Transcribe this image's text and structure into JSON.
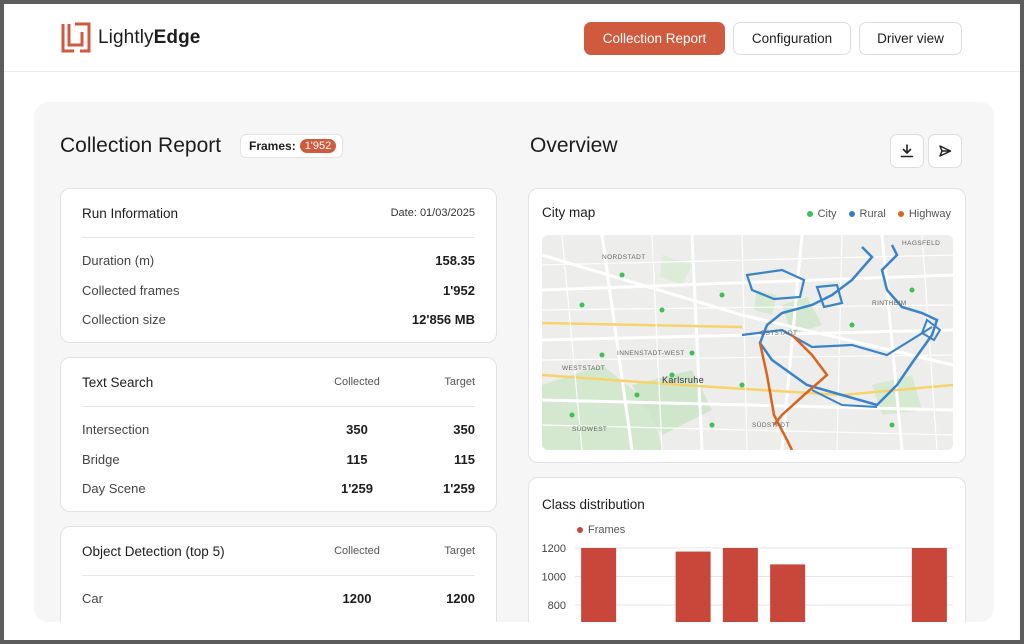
{
  "brand": {
    "name_light": "Lightly",
    "name_bold": "Edge",
    "color": "#cf5a3e"
  },
  "nav": {
    "collection_report": "Collection Report",
    "configuration": "Configuration",
    "driver_view": "Driver view",
    "active": "collection_report"
  },
  "page": {
    "title": "Collection Report",
    "frames_label": "Frames:",
    "frames_value": "1'952",
    "overview_title": "Overview",
    "download_icon": "download-icon",
    "send_icon": "send-icon"
  },
  "run_info": {
    "title": "Run Information",
    "date": "Date: 01/03/2025",
    "rows": [
      {
        "label": "Duration (m)",
        "value": "158.35"
      },
      {
        "label": "Collected frames",
        "value": "1'952"
      },
      {
        "label": "Collection size",
        "value": "12'856 MB"
      }
    ]
  },
  "text_search": {
    "title": "Text Search",
    "col_collected": "Collected",
    "col_target": "Target",
    "rows": [
      {
        "label": "Intersection",
        "collected": "350",
        "target": "350"
      },
      {
        "label": "Bridge",
        "collected": "115",
        "target": "115"
      },
      {
        "label": "Day Scene",
        "collected": "1'259",
        "target": "1'259"
      }
    ]
  },
  "object_detection": {
    "title": "Object Detection (top 5)",
    "col_collected": "Collected",
    "col_target": "Target",
    "rows": [
      {
        "label": "Car",
        "collected": "1200",
        "target": "1200"
      }
    ]
  },
  "city_map": {
    "title": "City map",
    "legend": [
      {
        "name": "City",
        "color": "#3fbf55"
      },
      {
        "name": "Rural",
        "color": "#2f7fc9"
      },
      {
        "name": "Highway",
        "color": "#d9641e"
      }
    ],
    "place_labels": [
      "INNENSTADT-WEST",
      "OSTSTADT",
      "Karlsruhe",
      "WESTSTADT",
      "SÜDWEST",
      "SÜDSTADT",
      "NORDSTADT",
      "HAGSFELD",
      "RINTHEIM",
      "OSTSTADT"
    ]
  },
  "chart_data": {
    "type": "bar",
    "title": "Class distribution",
    "series": [
      {
        "name": "Frames",
        "color": "#c9473a",
        "values": [
          1200,
          null,
          1175,
          1200,
          1085,
          null,
          null,
          1200
        ]
      }
    ],
    "categories": [
      "",
      "",
      "",
      "",
      "",
      "",
      "",
      ""
    ],
    "yticks": [
      "1200",
      "1000",
      "800"
    ],
    "ylim": [
      700,
      1250
    ],
    "grid": true,
    "legend_position": "top-left"
  }
}
